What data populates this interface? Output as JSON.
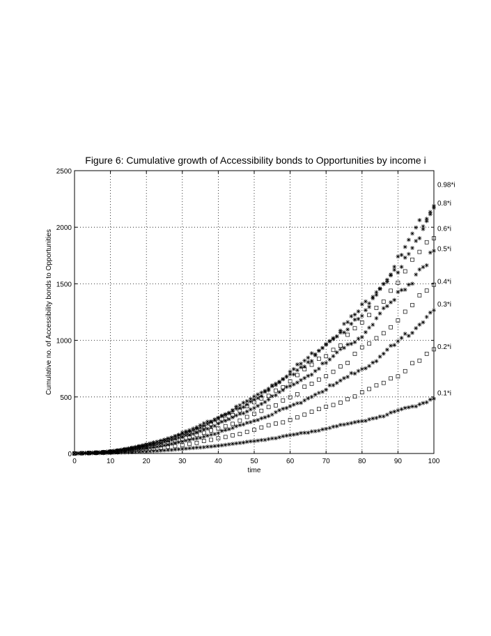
{
  "chart_data": {
    "type": "scatter",
    "title": "Figure 6: Cumulative growth of Accessibility bonds to Opportunities by income i",
    "xlabel": "time",
    "ylabel": "Cumulative no. of Accessibility bonds to Opportunities",
    "xlim": [
      0,
      100
    ],
    "ylim": [
      0,
      2500
    ],
    "xticks": [
      0,
      10,
      20,
      30,
      40,
      50,
      60,
      70,
      80,
      90,
      100
    ],
    "yticks": [
      0,
      500,
      1000,
      1500,
      2000,
      2500
    ],
    "grid": true,
    "x": [
      0,
      10,
      20,
      30,
      40,
      50,
      60,
      70,
      80,
      90,
      100
    ],
    "series": [
      {
        "name": "0.98*i",
        "marker": "star",
        "values": [
          0,
          20,
          80,
          180,
          320,
          500,
          720,
          980,
          1290,
          1700,
          2220
        ]
      },
      {
        "name": "0.8*i",
        "marker": "star",
        "values": [
          0,
          19,
          76,
          172,
          305,
          478,
          690,
          950,
          1250,
          1640,
          2150
        ]
      },
      {
        "name": "0.6*i",
        "marker": "square",
        "values": [
          0,
          18,
          70,
          160,
          285,
          445,
          640,
          870,
          1150,
          1520,
          1960
        ]
      },
      {
        "name": "0.5*i",
        "marker": "star",
        "values": [
          0,
          17,
          65,
          147,
          262,
          410,
          590,
          800,
          1060,
          1390,
          1790
        ]
      },
      {
        "name": "0.4*i",
        "marker": "square",
        "values": [
          0,
          14,
          55,
          124,
          222,
          348,
          505,
          690,
          915,
          1180,
          1500
        ]
      },
      {
        "name": "0.3*i",
        "marker": "star",
        "values": [
          0,
          12,
          46,
          104,
          185,
          290,
          415,
          570,
          750,
          980,
          1280
        ]
      },
      {
        "name": "0.2*i",
        "marker": "square",
        "values": [
          0,
          9,
          33,
          75,
          133,
          208,
          300,
          410,
          540,
          700,
          900
        ]
      },
      {
        "name": "0.1*i",
        "marker": "star",
        "values": [
          0,
          5,
          18,
          40,
          70,
          110,
          160,
          220,
          290,
          370,
          490
        ]
      }
    ]
  }
}
